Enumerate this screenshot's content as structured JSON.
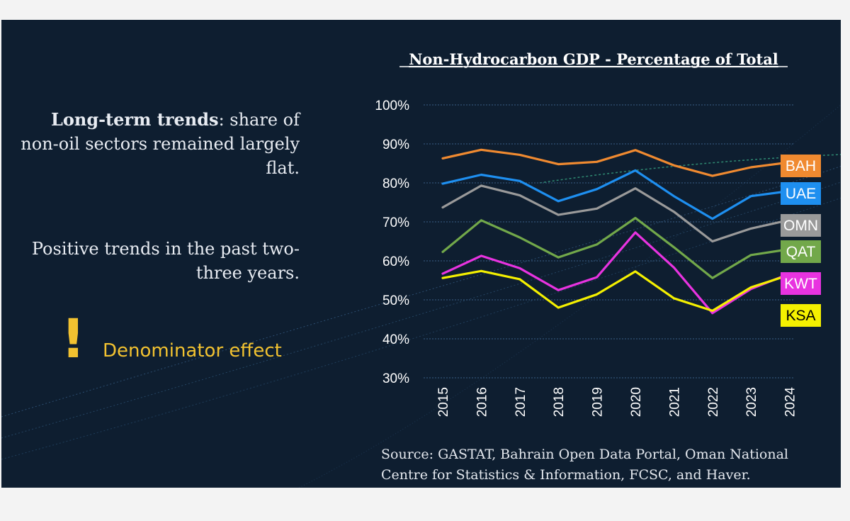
{
  "left_panel": {
    "trend_bold": "Long-term trends",
    "trend_rest": ": share of non-oil sectors remained largely flat.",
    "positive": "Positive trends in the past two-three years.",
    "warning_mark": "!",
    "warning_text": "Denominator effect"
  },
  "source_note": "Source: GASTAT, Bahrain Open Data Portal, Oman National Centre for Statistics & Information, FCSC, and Haver.",
  "chart_data": {
    "type": "line",
    "title": "Non-Hydrocarbon GDP - Percentage of Total",
    "xlabel": "",
    "ylabel": "",
    "x": [
      "2015",
      "2016",
      "2017",
      "2018",
      "2019",
      "2020",
      "2021",
      "2022",
      "2023",
      "2024"
    ],
    "ylim": [
      30,
      100
    ],
    "yticks": [
      30,
      40,
      50,
      60,
      70,
      80,
      90,
      100
    ],
    "ytick_labels": [
      "30%",
      "40%",
      "50%",
      "60%",
      "70%",
      "80%",
      "90%",
      "100%"
    ],
    "grid": true,
    "series": [
      {
        "name": "BAH",
        "color": "#f08a30",
        "label_text": "#ffffff",
        "values": [
          86.3,
          88.5,
          87.2,
          84.8,
          85.4,
          88.4,
          84.5,
          81.8,
          84.0,
          85.3
        ]
      },
      {
        "name": "UAE",
        "color": "#1e8ff0",
        "label_text": "#ffffff",
        "values": [
          79.8,
          82.1,
          80.5,
          75.3,
          78.4,
          83.2,
          76.6,
          70.8,
          76.6,
          77.9
        ]
      },
      {
        "name": "OMN",
        "color": "#9a9a9a",
        "label_text": "#ffffff",
        "values": [
          73.7,
          79.3,
          76.8,
          71.8,
          73.4,
          78.6,
          72.6,
          65.0,
          68.3,
          70.5
        ]
      },
      {
        "name": "QAT",
        "color": "#72a84a",
        "label_text": "#ffffff",
        "values": [
          62.3,
          70.4,
          66.0,
          60.9,
          64.2,
          71.0,
          63.5,
          55.6,
          61.5,
          63.0
        ]
      },
      {
        "name": "KWT",
        "color": "#e833e0",
        "label_text": "#ffffff",
        "values": [
          56.7,
          61.3,
          58.1,
          52.5,
          55.8,
          67.3,
          58.3,
          46.6,
          52.8,
          56.7
        ]
      },
      {
        "name": "KSA",
        "color": "#f4f000",
        "label_text": "#000000",
        "values": [
          55.6,
          57.4,
          55.3,
          48.0,
          51.4,
          57.3,
          50.4,
          47.2,
          53.2,
          56.4
        ]
      }
    ]
  }
}
